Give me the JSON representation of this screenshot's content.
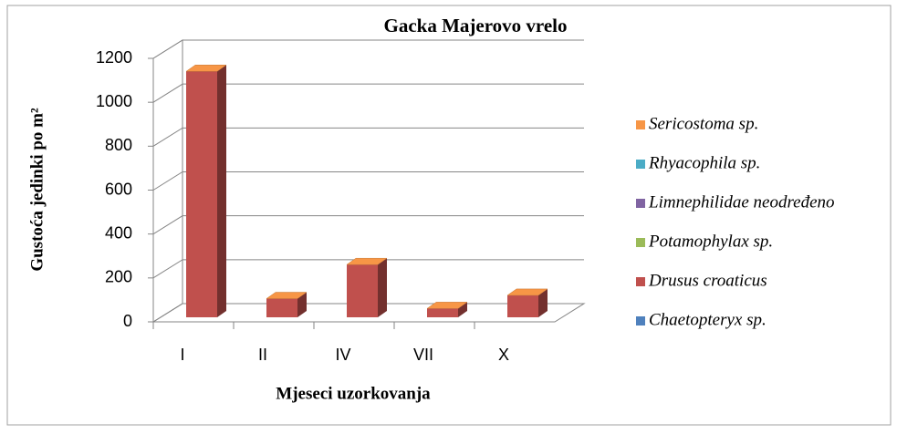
{
  "chart_data": {
    "type": "bar3d_stacked",
    "title": "Gacka Majerovo vrelo",
    "x_label": "Mjeseci uzorkovanja",
    "y_label": "Gustoća jedinki po m²",
    "categories": [
      "I",
      "II",
      "IV",
      "VII",
      "X"
    ],
    "series": [
      {
        "name": "Chaetopteryx sp.",
        "color": "#4f81bd",
        "values": [
          0,
          0,
          0,
          0,
          0
        ]
      },
      {
        "name": "Drusus croaticus",
        "color": "#c0504d",
        "values": [
          1120,
          85,
          240,
          40,
          100
        ]
      },
      {
        "name": "Potamophylax sp.",
        "color": "#9bbb59",
        "values": [
          0,
          0,
          0,
          0,
          0
        ]
      },
      {
        "name": "Limnephilidae neodređeno",
        "color": "#8064a2",
        "values": [
          0,
          0,
          0,
          0,
          0
        ]
      },
      {
        "name": "Rhyacophila sp.",
        "color": "#4bacc6",
        "values": [
          0,
          0,
          0,
          0,
          0
        ]
      },
      {
        "name": "Sericostoma sp.",
        "color": "#f79646",
        "values": [
          0,
          0,
          0,
          0,
          0
        ]
      }
    ],
    "ylim": [
      0,
      1200
    ],
    "yticks": [
      0,
      200,
      400,
      600,
      800,
      1000,
      1200
    ],
    "grid": true,
    "legend": "right"
  }
}
